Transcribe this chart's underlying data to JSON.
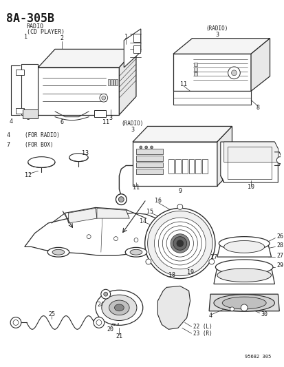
{
  "title": "8A-305B",
  "subtitle_line1": "RADIO",
  "subtitle_line2": "(CD PLAYER)",
  "bg_color": "#ffffff",
  "part_number_stamp": "95682 305",
  "line_color": "#2a2a2a",
  "text_color": "#1a1a1a"
}
